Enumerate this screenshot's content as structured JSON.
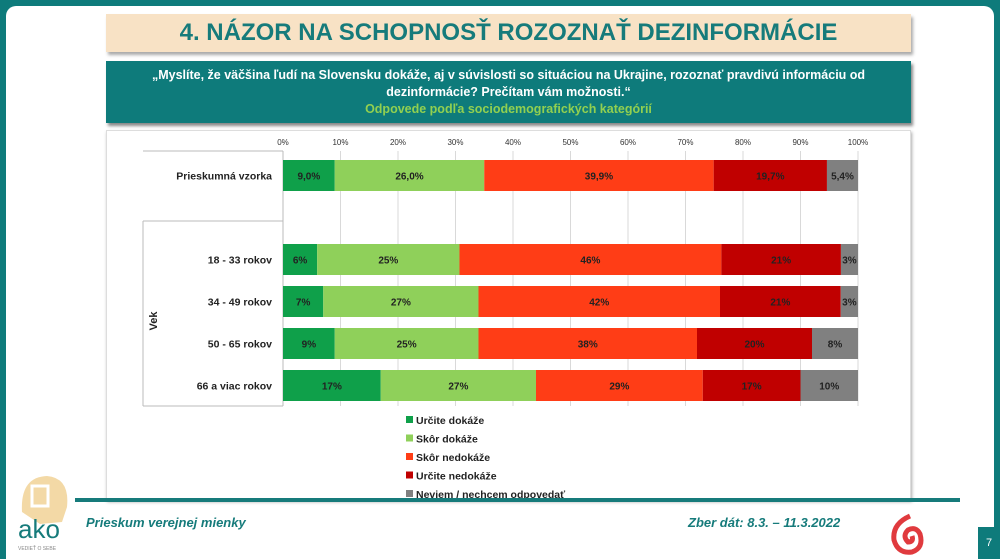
{
  "title": "4. NÁZOR NA SCHOPNOSŤ ROZOZNAŤ DEZINFORMÁCIE",
  "question": "„Myslíte, že väčšina ľudí na Slovensku dokáže, aj v súvislosti so situáciou na Ukrajine, rozoznať pravdivú informáciu od dezinformácie? Prečítam vám možnosti.“",
  "subtitle": "Odpovede podľa sociodemografických kategórií",
  "footer": {
    "left": "Prieskum verejnej mienky",
    "right": "Zber dát: 8.3. – 11.3.2022",
    "page": "7",
    "logo_text": "ako",
    "logo_tagline": "VEDIEŤ O SEBE"
  },
  "chart_data": {
    "type": "bar",
    "orientation": "horizontal",
    "stacked": true,
    "percent": true,
    "xlim": [
      0,
      100
    ],
    "x_ticks": [
      "0%",
      "10%",
      "20%",
      "30%",
      "40%",
      "50%",
      "60%",
      "70%",
      "80%",
      "90%",
      "100%"
    ],
    "group_label": "Vek",
    "categories": [
      "Prieskumná vzorka",
      "18 - 33 rokov",
      "34 - 49 rokov",
      "50 - 65 rokov",
      "66 a viac rokov"
    ],
    "series": [
      {
        "name": "Určite dokáže",
        "color": "#0fa04a",
        "values": [
          9.0,
          6,
          7,
          9,
          17
        ],
        "labels": [
          "9,0%",
          "6%",
          "7%",
          "9%",
          "17%"
        ]
      },
      {
        "name": "Skôr dokáže",
        "color": "#8fd05a",
        "values": [
          26.0,
          25,
          27,
          25,
          27
        ],
        "labels": [
          "26,0%",
          "25%",
          "27%",
          "25%",
          "27%"
        ]
      },
      {
        "name": "Skôr nedokáže",
        "color": "#ff3d16",
        "values": [
          39.9,
          46,
          42,
          38,
          29
        ],
        "labels": [
          "39,9%",
          "46%",
          "42%",
          "38%",
          "29%"
        ]
      },
      {
        "name": "Určite nedokáže",
        "color": "#c00000",
        "values": [
          19.7,
          21,
          21,
          20,
          17
        ],
        "labels": [
          "19,7%",
          "21%",
          "21%",
          "20%",
          "17%"
        ]
      },
      {
        "name": "Neviem / nechcem odpovedať",
        "color": "#808080",
        "values": [
          5.4,
          3,
          3,
          8,
          10
        ],
        "labels": [
          "5,4%",
          "3%",
          "3%",
          "8%",
          "10%"
        ]
      }
    ],
    "legend_position": "bottom"
  }
}
